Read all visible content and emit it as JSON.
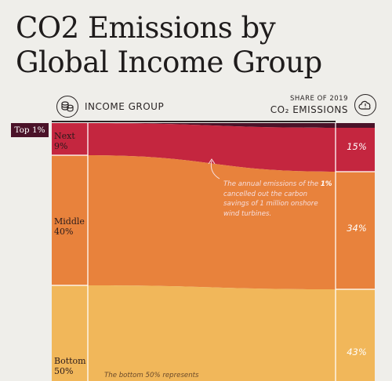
{
  "title": {
    "line1": "CO2 Emissions by",
    "line2": "Global Income Group"
  },
  "header": {
    "left_label": "INCOME GROUP",
    "left_icon": "coins-icon",
    "right_small": "SHARE OF 2019",
    "right_big": "CO₂ EMISSIONS",
    "right_icon": "cloud-icon"
  },
  "annotation": {
    "pre": "The annual emissions of the",
    "bold": "1%",
    "post": "cancelled out the carbon savings of 1 million onshore wind turbines."
  },
  "bottom_note": "The bottom 50% represents",
  "colors": {
    "top1": "#4a1228",
    "next9": "#c4263f",
    "middle40": "#e8823c",
    "bottom50": "#f1b75a",
    "background": "#efeeea"
  },
  "chart_data": {
    "type": "area",
    "title": "CO2 Emissions by Global Income Group",
    "groups": [
      {
        "name": "Top 1%",
        "label_line1": "Top 1%",
        "label_line2": "",
        "population_share": 1,
        "emission_share": null,
        "emission_label": ""
      },
      {
        "name": "Next 9%",
        "label_line1": "Next",
        "label_line2": "9%",
        "population_share": 9,
        "emission_share": 15,
        "emission_label": "15%"
      },
      {
        "name": "Middle 40%",
        "label_line1": "Middle",
        "label_line2": "40%",
        "population_share": 40,
        "emission_share": 34,
        "emission_label": "34%"
      },
      {
        "name": "Bottom 50%",
        "label_line1": "Bottom",
        "label_line2": "50%",
        "population_share": 50,
        "emission_share": 43,
        "emission_label": "43%"
      }
    ]
  }
}
